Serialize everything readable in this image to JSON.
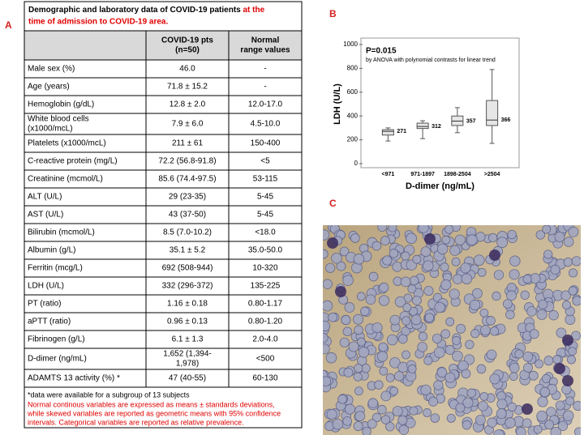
{
  "panels": {
    "a": "A",
    "b": "B",
    "c": "C"
  },
  "table": {
    "title_parts": [
      "Demographic and laboratory data of COVID-19 patients",
      "at the",
      "time of admission to COVID-19 area."
    ],
    "header": [
      [
        ""
      ],
      [
        "COVID-19 pts",
        "(n=50)"
      ],
      [
        "Normal",
        "range values"
      ]
    ],
    "rows": [
      [
        [
          "Male sex (%)"
        ],
        [
          "46.0"
        ],
        [
          "-"
        ]
      ],
      [
        [
          "Age (years)"
        ],
        [
          "71.8 ± 15.2"
        ],
        [
          "-"
        ]
      ],
      [
        [
          "Hemoglobin (g/dL)"
        ],
        [
          "12.8 ± 2.0"
        ],
        [
          "12.0-17.0"
        ]
      ],
      [
        [
          "White blood cells",
          "(x1000/mcL)"
        ],
        [
          "7.9 ± 6.0"
        ],
        [
          "4.5-10.0"
        ]
      ],
      [
        [
          "Platelets (x1000/mcL)"
        ],
        [
          "211 ± 61"
        ],
        [
          "150-400"
        ]
      ],
      [
        [
          "C-reactive protein (mg/L)"
        ],
        [
          "72.2 (56.8-91.8)"
        ],
        [
          "<5"
        ]
      ],
      [
        [
          "Creatinine (mcmol/L)"
        ],
        [
          "85.6 (74.4-97.5)"
        ],
        [
          "53-115"
        ]
      ],
      [
        [
          "ALT (U/L)"
        ],
        [
          "29 (23-35)"
        ],
        [
          "5-45"
        ]
      ],
      [
        [
          "AST (U/L)"
        ],
        [
          "43 (37-50)"
        ],
        [
          "5-45"
        ]
      ],
      [
        [
          "Bilirubin (mcmol/L)"
        ],
        [
          "8.5 (7.0-10.2)"
        ],
        [
          "<18.0"
        ]
      ],
      [
        [
          "Albumin (g/L)"
        ],
        [
          "35.1 ± 5.2"
        ],
        [
          "35.0-50.0"
        ]
      ],
      [
        [
          "Ferritin (mcg/L)"
        ],
        [
          "692 (508-944)"
        ],
        [
          "10-320"
        ]
      ],
      [
        [
          "LDH (U/L)"
        ],
        [
          "332 (296-372)"
        ],
        [
          "135-225"
        ]
      ],
      [
        [
          "PT (ratio)"
        ],
        [
          "1.16 ± 0.18"
        ],
        [
          "0.80-1.17"
        ]
      ],
      [
        [
          "aPTT (ratio)"
        ],
        [
          "0.96 ± 0.13"
        ],
        [
          "0.80-1.20"
        ]
      ],
      [
        [
          "Fibrinogen (g/L)"
        ],
        [
          "6.1 ± 1.3"
        ],
        [
          "2.0-4.0"
        ]
      ],
      [
        [
          "D-dimer (ng/mL)"
        ],
        [
          "1,652 (1,394-",
          "1,978)"
        ],
        [
          "<500"
        ]
      ],
      [
        [
          "ADAMTS 13 activity (%) *"
        ],
        [
          "47 (40-55)"
        ],
        [
          "60-130"
        ]
      ]
    ],
    "footnote": "*data were available for a subgroup of 13 subjects",
    "note_lines": [
      "Normal continous variables are expressed as means ± standards deviations,",
      "while skewed variables are reported as geometric means with 95% confidence",
      "intervals. Categorical variables are reported as relative prevalence."
    ]
  },
  "chart_data": {
    "type": "box",
    "annotation": "P=0.015",
    "subannotation": "by ANOVA with polynomial contrasts for linear trend",
    "x_label": "D-dimer (ng/mL)",
    "y_label": "LDH (U/L)",
    "categories": [
      "<971",
      "971-1897",
      "1898-2504",
      ">2504"
    ],
    "boxes": [
      {
        "min": 190,
        "q1": 240,
        "median": 271,
        "q3": 285,
        "max": 300
      },
      {
        "min": 210,
        "q1": 295,
        "median": 312,
        "q3": 340,
        "max": 360
      },
      {
        "min": 260,
        "q1": 320,
        "median": 357,
        "q3": 400,
        "max": 470
      },
      {
        "min": 170,
        "q1": 320,
        "median": 366,
        "q3": 530,
        "max": 790
      }
    ],
    "color": "#e6e6e6",
    "ylim": [
      0,
      1000
    ],
    "yticks": [
      0,
      200,
      400,
      600,
      800,
      1000
    ]
  }
}
